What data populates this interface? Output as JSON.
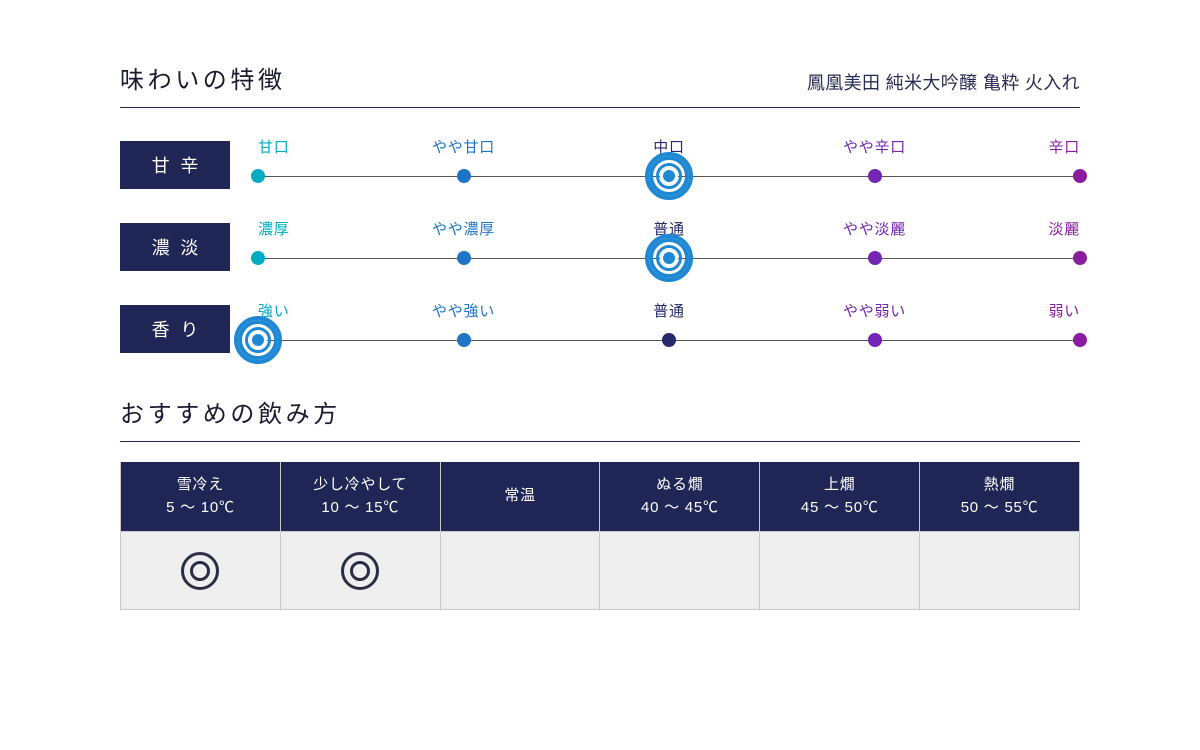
{
  "colors": {
    "navy": "#1f2655",
    "cell_bg": "#eeeeee",
    "border": "#c8c8c8",
    "text": "#1a1b30"
  },
  "taste": {
    "title": "味わいの特徴",
    "product": "鳳凰美田 純米大吟醸 亀粋 火入れ",
    "point_colors": [
      "#00acc4",
      "#1e75c8",
      "#252a6c",
      "#7325b3",
      "#8a1ca0"
    ],
    "sel_color": "#1e88d4",
    "positions_pct": [
      0,
      25,
      50,
      75,
      100
    ],
    "attributes": [
      {
        "name": "甘辛",
        "label_class": "tight",
        "labels": [
          "甘口",
          "やや甘口",
          "中口",
          "やや辛口",
          "辛口"
        ],
        "selected_index": 2
      },
      {
        "name": "濃淡",
        "label_class": "tight",
        "labels": [
          "濃厚",
          "やや濃厚",
          "普通",
          "やや淡麗",
          "淡麗"
        ],
        "selected_index": 2
      },
      {
        "name": "香り",
        "label_class": "tight",
        "labels": [
          "強い",
          "やや強い",
          "普通",
          "やや弱い",
          "弱い"
        ],
        "selected_index": 0
      }
    ]
  },
  "drinking": {
    "title": "おすすめの飲み方",
    "columns": [
      {
        "name": "雪冷え",
        "temp": "5 〜 10℃",
        "recommended": true
      },
      {
        "name": "少し冷やして",
        "temp": "10 〜 15℃",
        "recommended": true
      },
      {
        "name": "常温",
        "temp": "",
        "recommended": false
      },
      {
        "name": "ぬる燗",
        "temp": "40 〜 45℃",
        "recommended": false
      },
      {
        "name": "上燗",
        "temp": "45 〜 50℃",
        "recommended": false
      },
      {
        "name": "熱燗",
        "temp": "50 〜 55℃",
        "recommended": false
      }
    ]
  }
}
